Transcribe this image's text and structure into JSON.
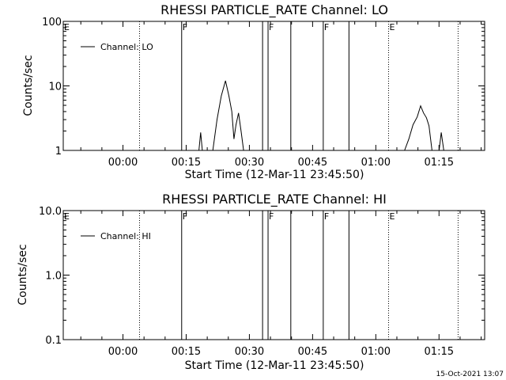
{
  "footer": {
    "timestamp": "15-Oct-2021 13:07"
  },
  "chart_data": [
    {
      "type": "line",
      "title": "RHESSI  PARTICLE_RATE  Channel: LO",
      "xlabel": "Start Time (12-Mar-11 23:45:50)",
      "ylabel": "Counts/sec",
      "x_unit": "minutes from start time",
      "xlim": [
        0,
        100
      ],
      "ylim": [
        1,
        100
      ],
      "yscale": "log",
      "x_tick_values": [
        14.17,
        29.17,
        44.17,
        59.17,
        74.17,
        89.17
      ],
      "x_tick_labels": [
        "00:00",
        "00:15",
        "00:30",
        "00:45",
        "01:00",
        "01:15"
      ],
      "y_ticks": [
        1,
        10,
        100
      ],
      "y_tick_labels": [
        "1",
        "10",
        "100"
      ],
      "legend": {
        "position": "top-left",
        "entries": [
          "Channel: LO"
        ]
      },
      "series": [
        {
          "name": "Channel: LO",
          "points": [
            [
              0,
              1
            ],
            [
              32.2,
              1
            ],
            [
              32.6,
              1.9
            ],
            [
              33.0,
              1
            ],
            [
              35.5,
              1
            ],
            [
              36.5,
              3
            ],
            [
              37.5,
              7
            ],
            [
              38.5,
              12
            ],
            [
              39.3,
              7
            ],
            [
              40.0,
              4
            ],
            [
              40.5,
              1.5
            ],
            [
              41.0,
              2.5
            ],
            [
              41.6,
              3.8
            ],
            [
              42.2,
              2
            ],
            [
              42.8,
              1
            ],
            [
              81.0,
              1
            ],
            [
              82.0,
              1.5
            ],
            [
              83.0,
              2.5
            ],
            [
              84.0,
              3.3
            ],
            [
              84.8,
              4.9
            ],
            [
              85.5,
              3.8
            ],
            [
              86.2,
              3.2
            ],
            [
              86.8,
              2.4
            ],
            [
              87.5,
              1
            ],
            [
              89.2,
              1
            ],
            [
              89.7,
              1.9
            ],
            [
              90.3,
              1
            ],
            [
              100,
              1
            ]
          ]
        }
      ],
      "vlines": [
        {
          "x": 18.1,
          "style": "dotted",
          "flag": ""
        },
        {
          "x": 28.1,
          "style": "solid",
          "flag": "F"
        },
        {
          "x": 47.3,
          "style": "solid",
          "flag": ""
        },
        {
          "x": 48.6,
          "style": "solid",
          "flag": "F"
        },
        {
          "x": 54.0,
          "style": "solid",
          "flag": ""
        },
        {
          "x": 61.7,
          "style": "solid",
          "flag": "F"
        },
        {
          "x": 67.8,
          "style": "solid",
          "flag": ""
        },
        {
          "x": 77.2,
          "style": "dotted",
          "flag": "E"
        },
        {
          "x": 93.7,
          "style": "dotted",
          "flag": ""
        }
      ],
      "corner_flag": "E",
      "grid": false
    },
    {
      "type": "line",
      "title": "RHESSI  PARTICLE_RATE  Channel: HI",
      "xlabel": "Start Time (12-Mar-11 23:45:50)",
      "ylabel": "Counts/sec",
      "x_unit": "minutes from start time",
      "xlim": [
        0,
        100
      ],
      "ylim": [
        0.1,
        10
      ],
      "yscale": "log",
      "x_tick_values": [
        14.17,
        29.17,
        44.17,
        59.17,
        74.17,
        89.17
      ],
      "x_tick_labels": [
        "00:00",
        "00:15",
        "00:30",
        "00:45",
        "01:00",
        "01:15"
      ],
      "y_ticks": [
        0.1,
        1,
        10
      ],
      "y_tick_labels": [
        "0.1",
        "1.0",
        "10.0"
      ],
      "legend": {
        "position": "top-left",
        "entries": [
          "Channel: HI"
        ]
      },
      "series": [
        {
          "name": "Channel: HI",
          "points": []
        }
      ],
      "vlines": [
        {
          "x": 18.1,
          "style": "dotted",
          "flag": ""
        },
        {
          "x": 28.1,
          "style": "solid",
          "flag": "F"
        },
        {
          "x": 47.3,
          "style": "solid",
          "flag": ""
        },
        {
          "x": 48.6,
          "style": "solid",
          "flag": "F"
        },
        {
          "x": 54.0,
          "style": "solid",
          "flag": ""
        },
        {
          "x": 61.7,
          "style": "solid",
          "flag": "F"
        },
        {
          "x": 67.8,
          "style": "solid",
          "flag": ""
        },
        {
          "x": 77.2,
          "style": "dotted",
          "flag": "E"
        },
        {
          "x": 93.7,
          "style": "dotted",
          "flag": ""
        }
      ],
      "corner_flag": "E",
      "grid": false
    }
  ]
}
